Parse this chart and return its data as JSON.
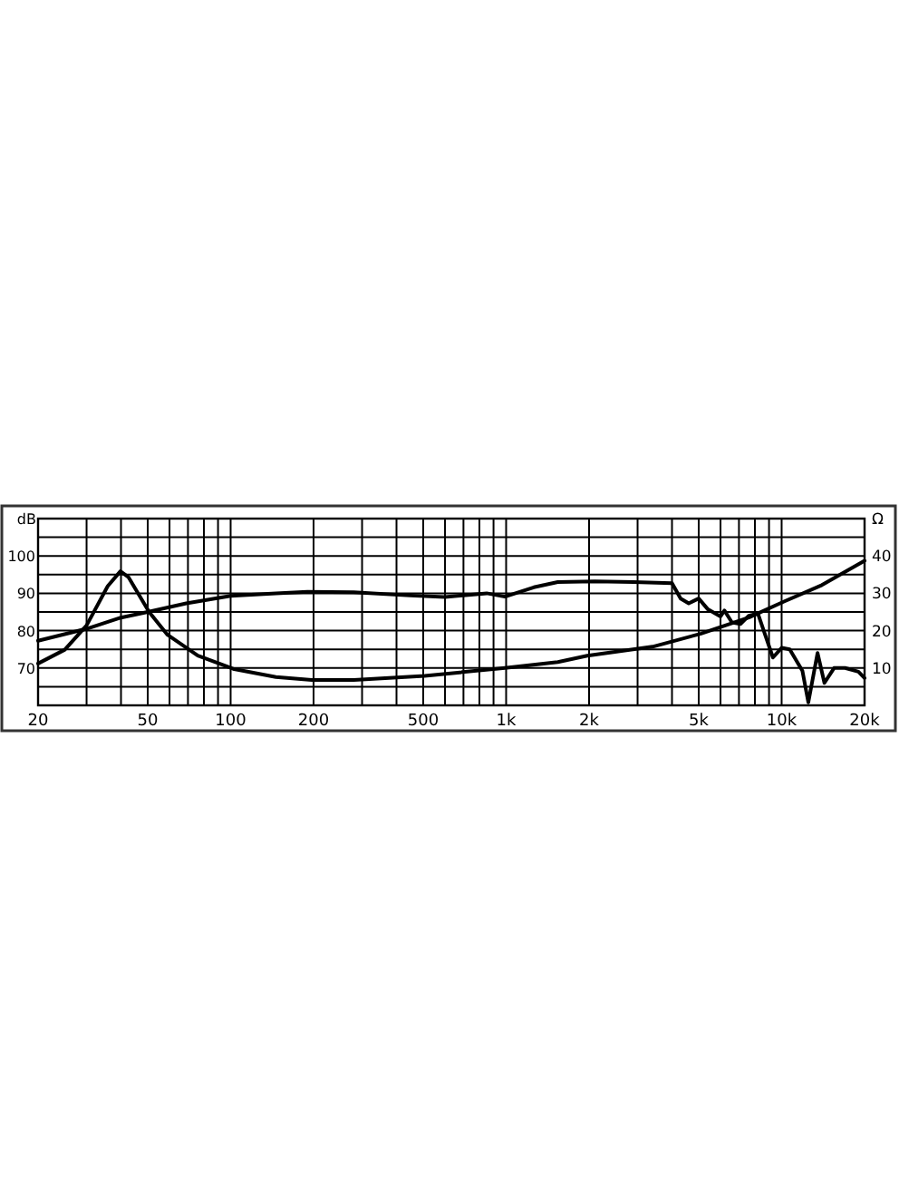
{
  "chart_data": {
    "type": "line",
    "ylabel": "dB",
    "y2label": "Ω",
    "log": "x",
    "grid": true,
    "xlim": [
      20,
      20000
    ],
    "xticks": [
      20,
      {
        "value": 30,
        "label": null
      },
      {
        "value": 40,
        "label": null
      },
      50,
      {
        "value": 60,
        "label": null
      },
      {
        "value": 70,
        "label": null
      },
      {
        "value": 80,
        "label": null
      },
      {
        "value": 90,
        "label": null
      },
      100,
      200,
      {
        "value": 300,
        "label": null
      },
      {
        "value": 400,
        "label": null
      },
      500,
      {
        "value": 600,
        "label": null
      },
      {
        "value": 700,
        "label": null
      },
      {
        "value": 800,
        "label": null
      },
      {
        "value": 900,
        "label": null
      },
      {
        "value": 1000,
        "label": "1k"
      },
      {
        "value": 2000,
        "label": "2k"
      },
      {
        "value": 3000,
        "label": null
      },
      {
        "value": 4000,
        "label": null
      },
      {
        "value": 5000,
        "label": "5k"
      },
      {
        "value": 6000,
        "label": null
      },
      {
        "value": 7000,
        "label": null
      },
      {
        "value": 8000,
        "label": null
      },
      {
        "value": 9000,
        "label": null
      },
      {
        "value": 10000,
        "label": "10k"
      },
      {
        "value": 20000,
        "label": "20k"
      }
    ],
    "ylim": [
      60,
      110
    ],
    "yticks": [
      {
        "value": 60,
        "label": null
      },
      {
        "value": 65,
        "label": null
      },
      70,
      {
        "value": 75,
        "label": null
      },
      80,
      {
        "value": 85,
        "label": null
      },
      90,
      {
        "value": 95,
        "label": null
      },
      100,
      {
        "value": 105,
        "label": null
      },
      {
        "value": 110,
        "label": null
      }
    ],
    "y2lim": [
      0,
      50
    ],
    "y2ticks": [
      10,
      20,
      30,
      40
    ],
    "series": [
      {
        "color": "#000000",
        "axis": "y",
        "x": [
          20,
          30,
          40,
          50,
          69,
          100,
          146,
          190,
          280,
          450,
          600,
          850,
          990,
          1260,
          1540,
          2100,
          2900,
          4000,
          4300,
          4600,
          5000,
          5400,
          6000,
          6200,
          6600,
          7100,
          7600,
          8200,
          8700,
          9300,
          10000,
          10700,
          11900,
          12500,
          13500,
          14300,
          15500,
          17000,
          19000,
          20000
        ],
        "values": [
          77.3,
          80.5,
          83.5,
          85,
          87.3,
          89.3,
          90,
          90.4,
          90.3,
          89.4,
          89,
          90,
          89.1,
          91.6,
          93,
          93.2,
          93,
          92.7,
          88.6,
          87.3,
          88.6,
          85.7,
          83.8,
          85.4,
          82.2,
          81.8,
          84,
          84.6,
          79,
          72.8,
          75.4,
          75,
          69.2,
          60.8,
          74,
          66,
          70,
          70,
          69,
          67.3
        ]
      },
      {
        "color": "#000000",
        "axis": "y2",
        "x": [
          20,
          25,
          30,
          35.8,
          39.8,
          42.6,
          50.6,
          59,
          76,
          103,
          146,
          197,
          280,
          506,
          990,
          1540,
          1970,
          3400,
          5100,
          7600,
          10200,
          14000,
          20000
        ],
        "values": [
          11.2,
          14.9,
          21.4,
          31.9,
          35.9,
          34.3,
          25,
          18.9,
          13.3,
          9.7,
          7.6,
          6.8,
          6.8,
          7.9,
          10,
          11.6,
          13.3,
          15.7,
          19.2,
          23.5,
          27.8,
          32.2,
          38.7
        ]
      }
    ]
  }
}
